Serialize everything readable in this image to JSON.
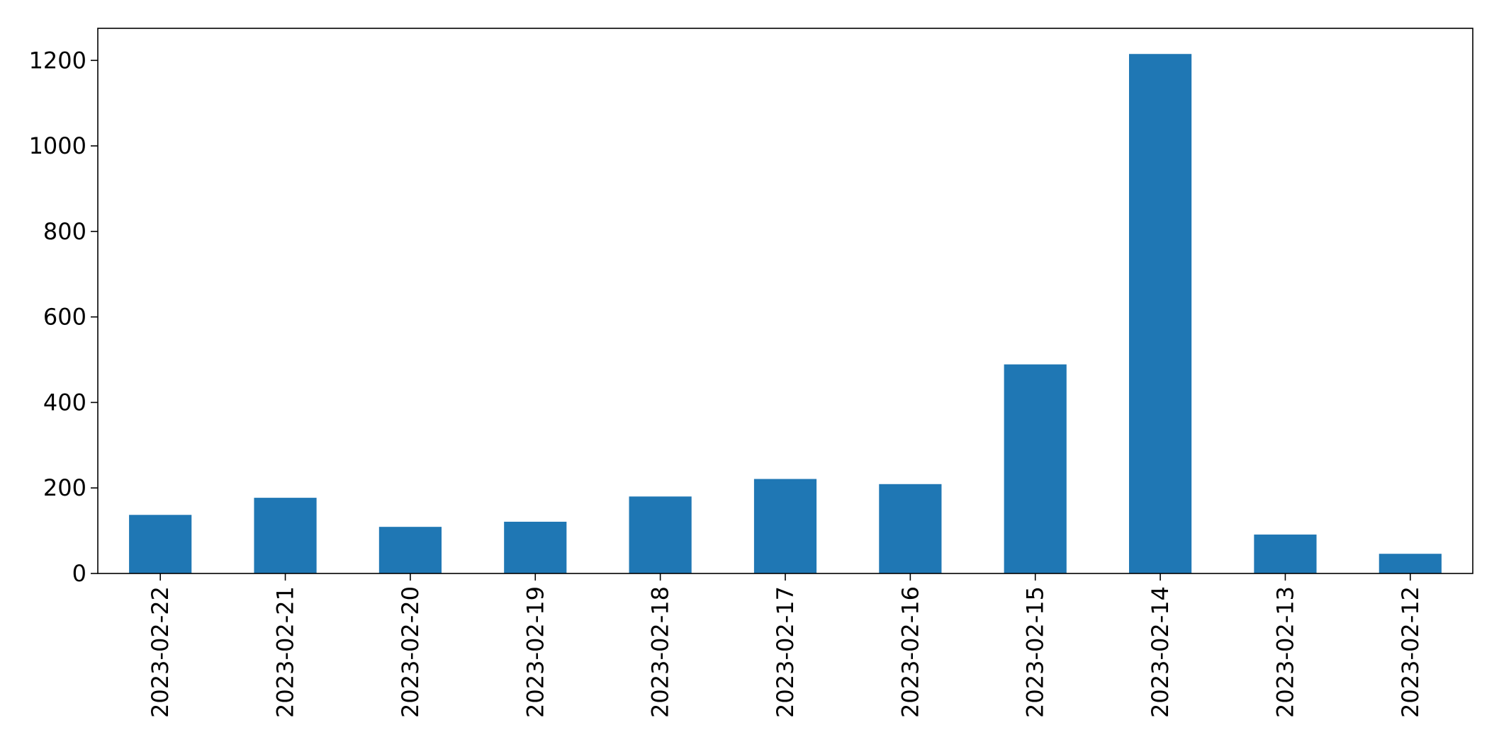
{
  "chart_data": {
    "type": "bar",
    "title": "",
    "xlabel": "",
    "ylabel": "",
    "categories": [
      "2023-02-22",
      "2023-02-21",
      "2023-02-20",
      "2023-02-19",
      "2023-02-18",
      "2023-02-17",
      "2023-02-16",
      "2023-02-15",
      "2023-02-14",
      "2023-02-13",
      "2023-02-12"
    ],
    "values": [
      137,
      177,
      109,
      121,
      180,
      221,
      209,
      489,
      1215,
      91,
      46
    ],
    "ylim": [
      0,
      1275
    ],
    "yticks": [
      0,
      200,
      400,
      600,
      800,
      1000,
      1200
    ],
    "ytick_labels": [
      "0",
      "200",
      "400",
      "600",
      "800",
      "1000",
      "1200"
    ],
    "bar_color": "#1f77b4",
    "grid": false,
    "legend": "none"
  }
}
